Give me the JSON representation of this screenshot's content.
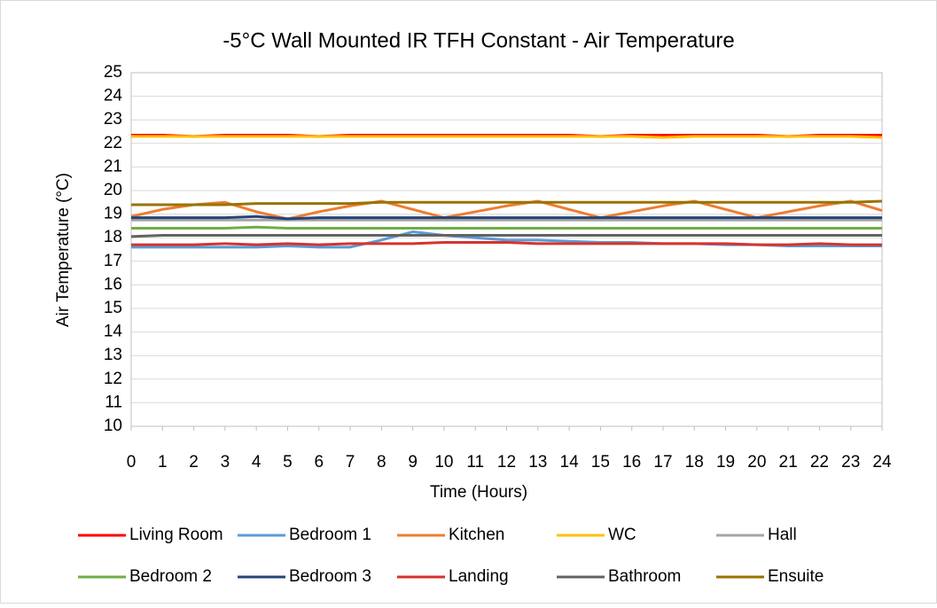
{
  "chart_data": {
    "type": "line",
    "title": "-5°C Wall Mounted IR TFH Constant - Air Temperature",
    "x_label": "Time (Hours)",
    "y_label": "Air Temperature (°C)",
    "x": [
      0,
      1,
      2,
      3,
      4,
      5,
      6,
      7,
      8,
      9,
      10,
      11,
      12,
      13,
      14,
      15,
      16,
      17,
      18,
      19,
      20,
      21,
      22,
      23,
      24
    ],
    "xlim": [
      0,
      24
    ],
    "xticks": [
      0,
      1,
      2,
      3,
      4,
      5,
      6,
      7,
      8,
      9,
      10,
      11,
      12,
      13,
      14,
      15,
      16,
      17,
      18,
      19,
      20,
      21,
      22,
      23,
      24
    ],
    "ylim": [
      10,
      25
    ],
    "yticks": [
      10,
      11,
      12,
      13,
      14,
      15,
      16,
      17,
      18,
      19,
      20,
      21,
      22,
      23,
      24,
      25
    ],
    "grid": true,
    "legend": "bottom",
    "series": [
      {
        "name": "Living Room",
        "color": "#ff0000",
        "values": [
          22.35,
          22.35,
          22.3,
          22.35,
          22.35,
          22.35,
          22.3,
          22.35,
          22.35,
          22.35,
          22.35,
          22.35,
          22.35,
          22.35,
          22.35,
          22.3,
          22.35,
          22.35,
          22.35,
          22.35,
          22.35,
          22.3,
          22.35,
          22.35,
          22.35
        ]
      },
      {
        "name": "Bedroom 1",
        "color": "#5b9bd5",
        "values": [
          17.6,
          17.6,
          17.6,
          17.6,
          17.6,
          17.65,
          17.6,
          17.6,
          17.9,
          18.25,
          18.1,
          18.0,
          17.9,
          17.9,
          17.85,
          17.8,
          17.8,
          17.75,
          17.75,
          17.7,
          17.7,
          17.65,
          17.65,
          17.65,
          17.65
        ]
      },
      {
        "name": "Kitchen",
        "color": "#ed7d31",
        "values": [
          18.9,
          19.2,
          19.4,
          19.5,
          19.1,
          18.8,
          19.1,
          19.35,
          19.55,
          19.2,
          18.85,
          19.1,
          19.35,
          19.55,
          19.2,
          18.85,
          19.1,
          19.35,
          19.55,
          19.2,
          18.85,
          19.1,
          19.35,
          19.55,
          19.15
        ]
      },
      {
        "name": "WC",
        "color": "#ffc000",
        "values": [
          22.3,
          22.3,
          22.3,
          22.3,
          22.3,
          22.3,
          22.3,
          22.3,
          22.3,
          22.3,
          22.3,
          22.3,
          22.3,
          22.3,
          22.3,
          22.3,
          22.3,
          22.25,
          22.3,
          22.3,
          22.3,
          22.3,
          22.3,
          22.3,
          22.25
        ]
      },
      {
        "name": "Hall",
        "color": "#a5a5a5",
        "values": [
          18.75,
          18.75,
          18.75,
          18.75,
          18.75,
          18.75,
          18.75,
          18.75,
          18.75,
          18.75,
          18.75,
          18.75,
          18.75,
          18.75,
          18.75,
          18.75,
          18.75,
          18.75,
          18.75,
          18.75,
          18.75,
          18.75,
          18.75,
          18.75,
          18.75
        ]
      },
      {
        "name": "Bedroom 2",
        "color": "#70ad47",
        "values": [
          18.4,
          18.4,
          18.4,
          18.4,
          18.45,
          18.4,
          18.4,
          18.4,
          18.4,
          18.4,
          18.4,
          18.4,
          18.4,
          18.4,
          18.4,
          18.4,
          18.4,
          18.4,
          18.4,
          18.4,
          18.4,
          18.4,
          18.4,
          18.4,
          18.4
        ]
      },
      {
        "name": "Bedroom 3",
        "color": "#264478",
        "values": [
          18.85,
          18.85,
          18.85,
          18.85,
          18.9,
          18.8,
          18.85,
          18.85,
          18.85,
          18.85,
          18.85,
          18.85,
          18.85,
          18.85,
          18.85,
          18.85,
          18.85,
          18.85,
          18.85,
          18.85,
          18.85,
          18.85,
          18.85,
          18.85,
          18.85
        ]
      },
      {
        "name": "Landing",
        "color": "#d6332e",
        "values": [
          17.7,
          17.7,
          17.7,
          17.75,
          17.7,
          17.75,
          17.7,
          17.75,
          17.75,
          17.75,
          17.8,
          17.8,
          17.8,
          17.75,
          17.75,
          17.75,
          17.75,
          17.75,
          17.75,
          17.75,
          17.7,
          17.7,
          17.75,
          17.7,
          17.7
        ]
      },
      {
        "name": "Bathroom",
        "color": "#636363",
        "values": [
          18.05,
          18.1,
          18.1,
          18.1,
          18.1,
          18.1,
          18.1,
          18.1,
          18.1,
          18.1,
          18.1,
          18.1,
          18.1,
          18.1,
          18.1,
          18.1,
          18.1,
          18.1,
          18.1,
          18.1,
          18.1,
          18.1,
          18.1,
          18.1,
          18.1
        ]
      },
      {
        "name": "Ensuite",
        "color": "#997300",
        "values": [
          19.4,
          19.4,
          19.4,
          19.4,
          19.45,
          19.45,
          19.45,
          19.45,
          19.5,
          19.5,
          19.5,
          19.5,
          19.5,
          19.5,
          19.5,
          19.5,
          19.5,
          19.5,
          19.5,
          19.5,
          19.5,
          19.5,
          19.5,
          19.5,
          19.55
        ]
      }
    ]
  }
}
